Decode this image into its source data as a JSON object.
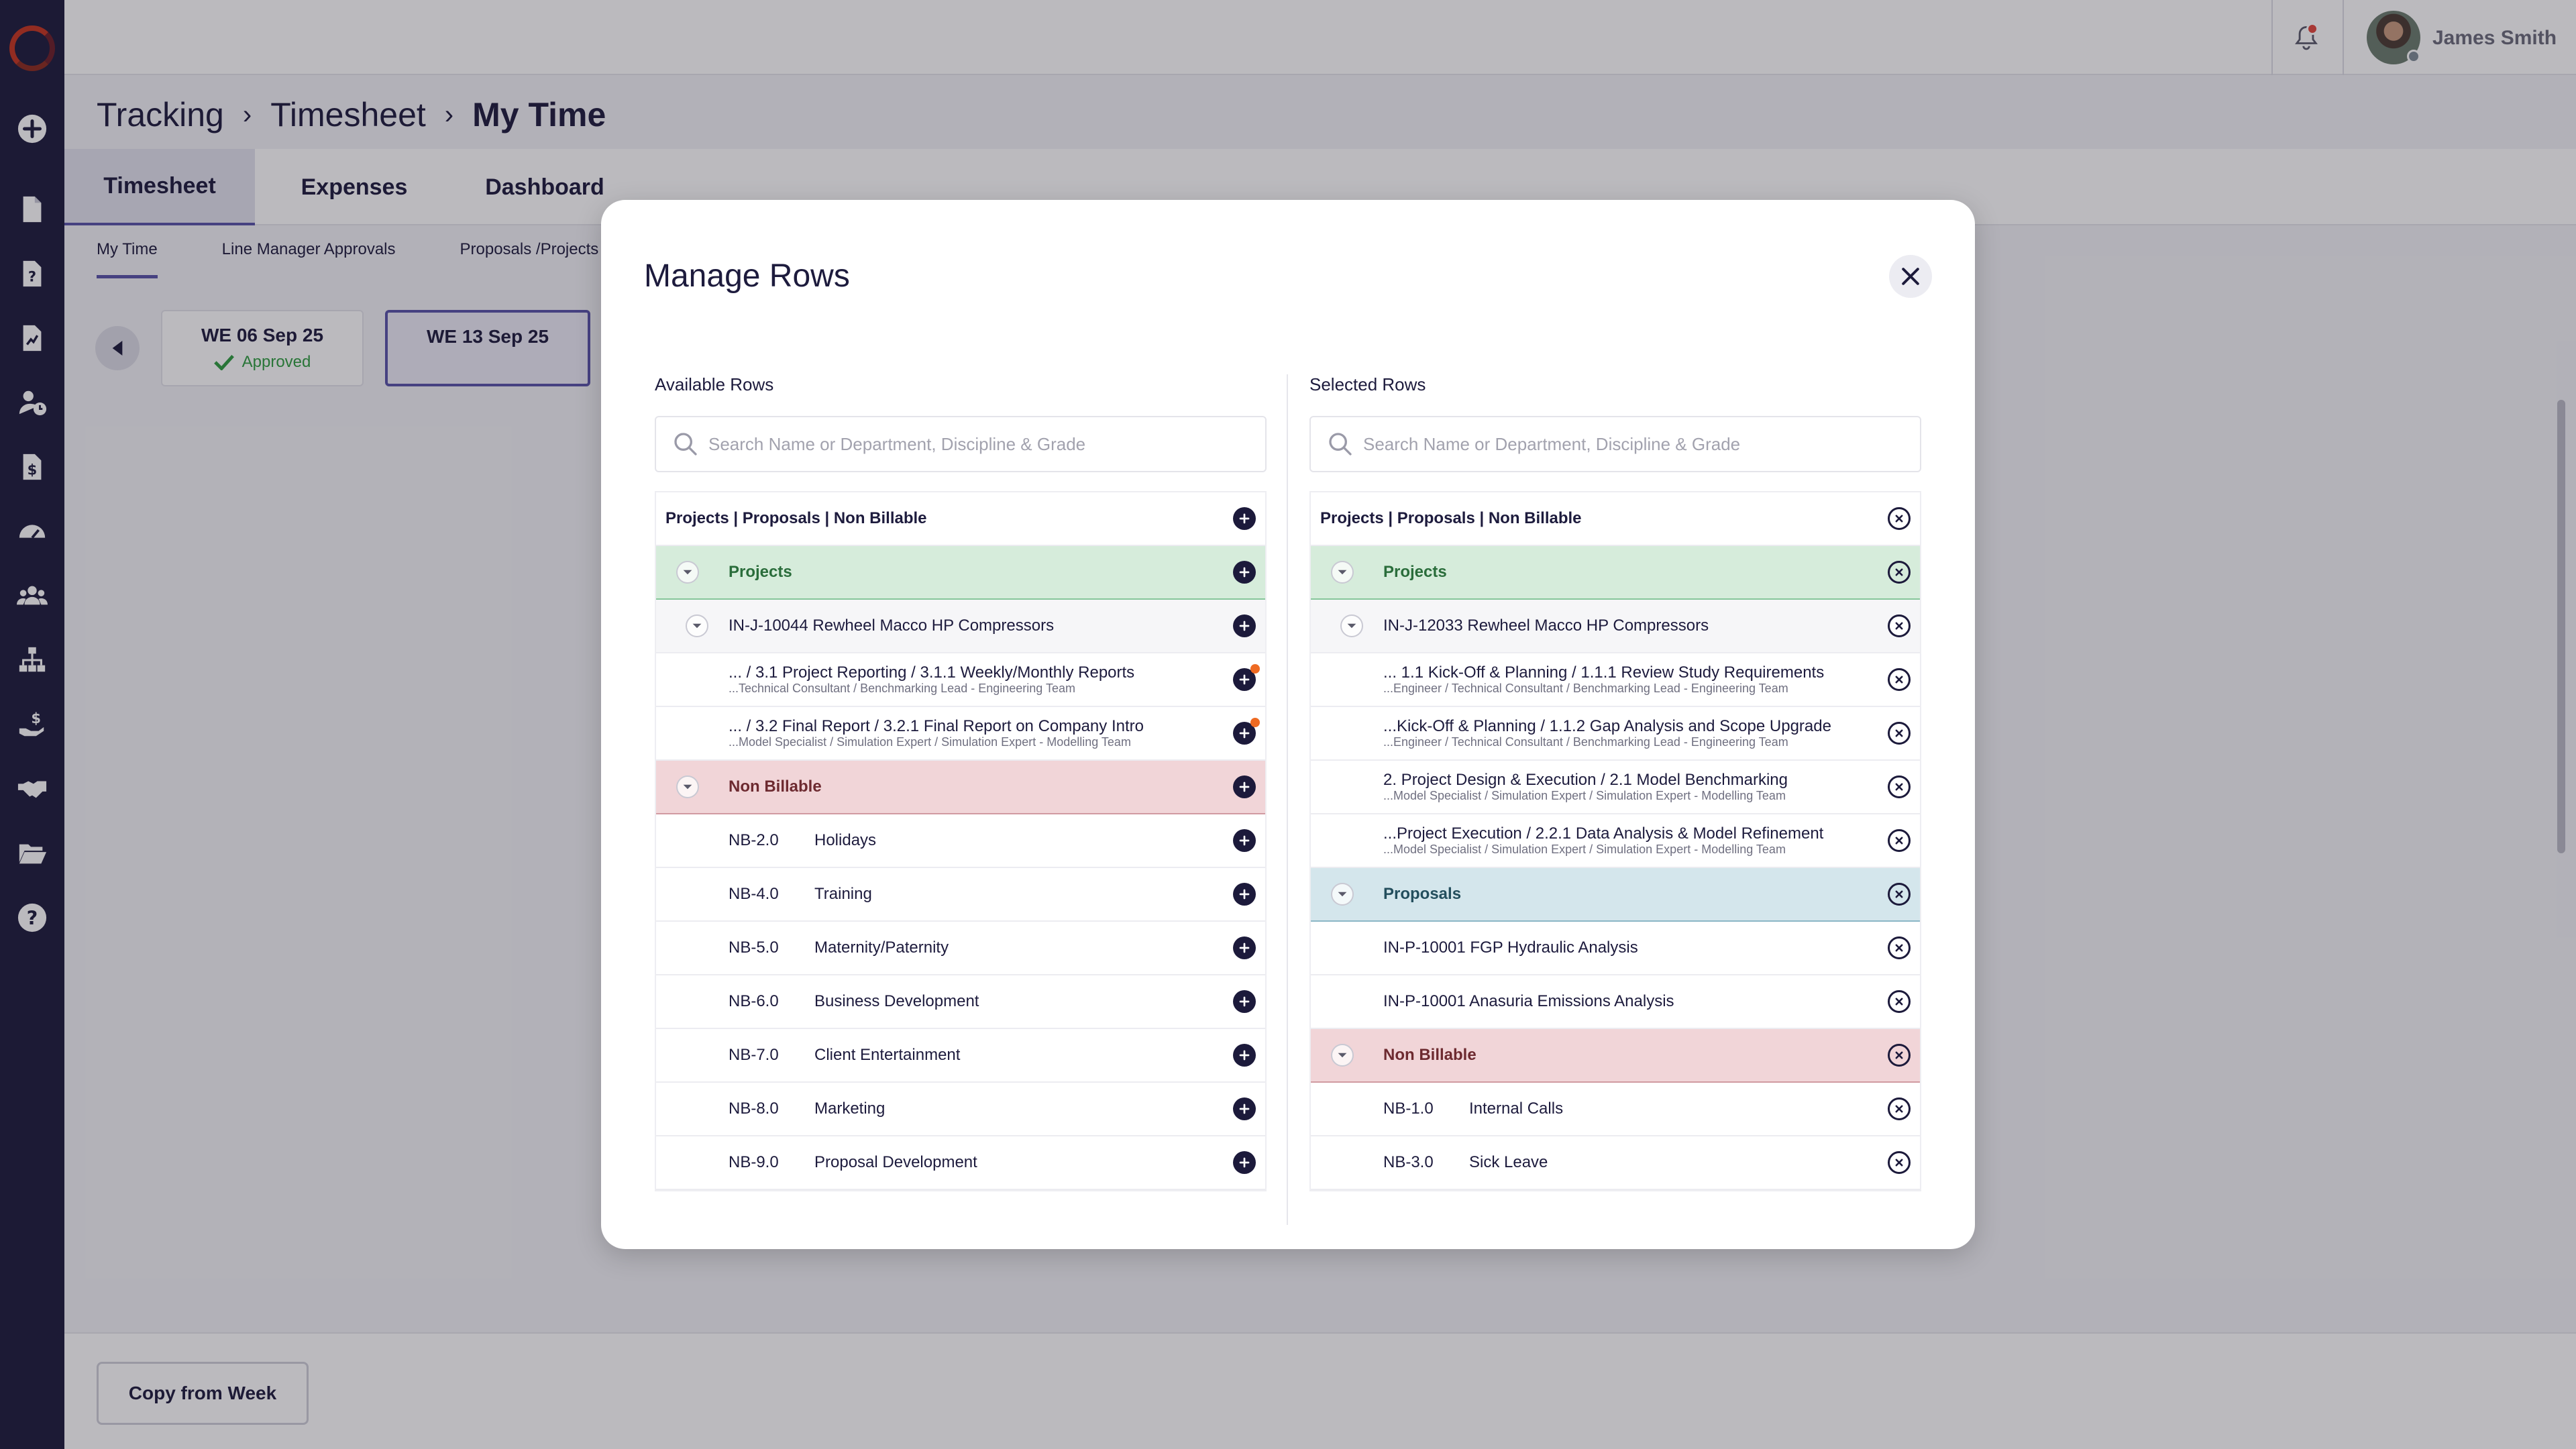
{
  "header": {
    "user_name": "James Smith",
    "breadcrumb": [
      "Tracking",
      "Timesheet",
      "My Time"
    ]
  },
  "main_tabs": [
    {
      "label": "Timesheet"
    },
    {
      "label": "Expenses"
    },
    {
      "label": "Dashboard"
    }
  ],
  "sub_tabs": [
    {
      "label": "My Time"
    },
    {
      "label": "Line Manager Approvals"
    },
    {
      "label": "Proposals /Projects"
    }
  ],
  "weeks": [
    {
      "label": "WE 06 Sep 25",
      "status": "Approved"
    },
    {
      "label": "WE 13 Sep 25",
      "status": ""
    }
  ],
  "footer": {
    "copy_label": "Copy from Week"
  },
  "modal": {
    "title": "Manage Rows",
    "available": {
      "label": "Available Rows",
      "search_placeholder": "Search Name or Department, Discipline & Grade",
      "header": "Projects | Proposals | Non Billable",
      "projects_group": "Projects",
      "project": {
        "name": "IN-J-10044 Rewheel Macco HP Compressors",
        "tasks": [
          {
            "title": "... / 3.1 Project Reporting / 3.1.1 Weekly/Monthly Reports",
            "sub": "...Technical Consultant / Benchmarking Lead - Engineering Team"
          },
          {
            "title": "... / 3.2 Final Report / 3.2.1 Final Report on Company Intro",
            "sub": "...Model Specialist / Simulation Expert / Simulation Expert - Modelling Team"
          }
        ]
      },
      "nonbillable_group": "Non Billable",
      "nonbillable": [
        {
          "code": "NB-2.0",
          "name": "Holidays"
        },
        {
          "code": "NB-4.0",
          "name": "Training"
        },
        {
          "code": "NB-5.0",
          "name": "Maternity/Paternity"
        },
        {
          "code": "NB-6.0",
          "name": "Business Development"
        },
        {
          "code": "NB-7.0",
          "name": "Client Entertainment"
        },
        {
          "code": "NB-8.0",
          "name": "Marketing"
        },
        {
          "code": "NB-9.0",
          "name": "Proposal Development"
        }
      ]
    },
    "selected": {
      "label": "Selected Rows",
      "search_placeholder": "Search Name or Department, Discipline & Grade",
      "header": "Projects | Proposals | Non Billable",
      "projects_group": "Projects",
      "project": {
        "name": "IN-J-12033 Rewheel Macco HP Compressors",
        "tasks": [
          {
            "title": "... 1.1 Kick-Off & Planning / 1.1.1 Review Study Requirements",
            "sub": "...Engineer / Technical Consultant / Benchmarking Lead - Engineering Team"
          },
          {
            "title": "...Kick-Off & Planning / 1.1.2 Gap Analysis and Scope Upgrade",
            "sub": "...Engineer / Technical Consultant / Benchmarking Lead - Engineering Team"
          },
          {
            "title": "2. Project Design & Execution / 2.1 Model Benchmarking",
            "sub": "...Model Specialist / Simulation Expert / Simulation Expert - Modelling Team"
          },
          {
            "title": "...Project Execution / 2.2.1 Data Analysis & Model Refinement",
            "sub": "...Model Specialist / Simulation Expert / Simulation Expert - Modelling Team"
          }
        ]
      },
      "proposals_group": "Proposals",
      "proposals": [
        {
          "name": "IN-P-10001 FGP Hydraulic Analysis"
        },
        {
          "name": "IN-P-10001 Anasuria Emissions Analysis"
        }
      ],
      "nonbillable_group": "Non Billable",
      "nonbillable": [
        {
          "code": "NB-1.0",
          "name": "Internal Calls"
        },
        {
          "code": "NB-3.0",
          "name": "Sick Leave"
        }
      ]
    }
  },
  "icons": {
    "sidebar": [
      "add-circle-icon",
      "document-icon",
      "document-question-icon",
      "report-chart-icon",
      "user-clock-icon",
      "invoice-dollar-icon",
      "dashboard-gauge-icon",
      "team-users-icon",
      "org-chart-icon",
      "hand-money-icon",
      "handshake-icon",
      "folder-open-icon",
      "help-circle-icon"
    ]
  },
  "colors": {
    "sidebar": "#1c1a3b",
    "accent": "#5852a8",
    "projects_group": "#d6ecdb",
    "nonbillable_group": "#f1d5d8",
    "proposals_group": "#d4e6ec",
    "approved": "#2e9d3f",
    "alert_dot": "#ee6a23"
  }
}
